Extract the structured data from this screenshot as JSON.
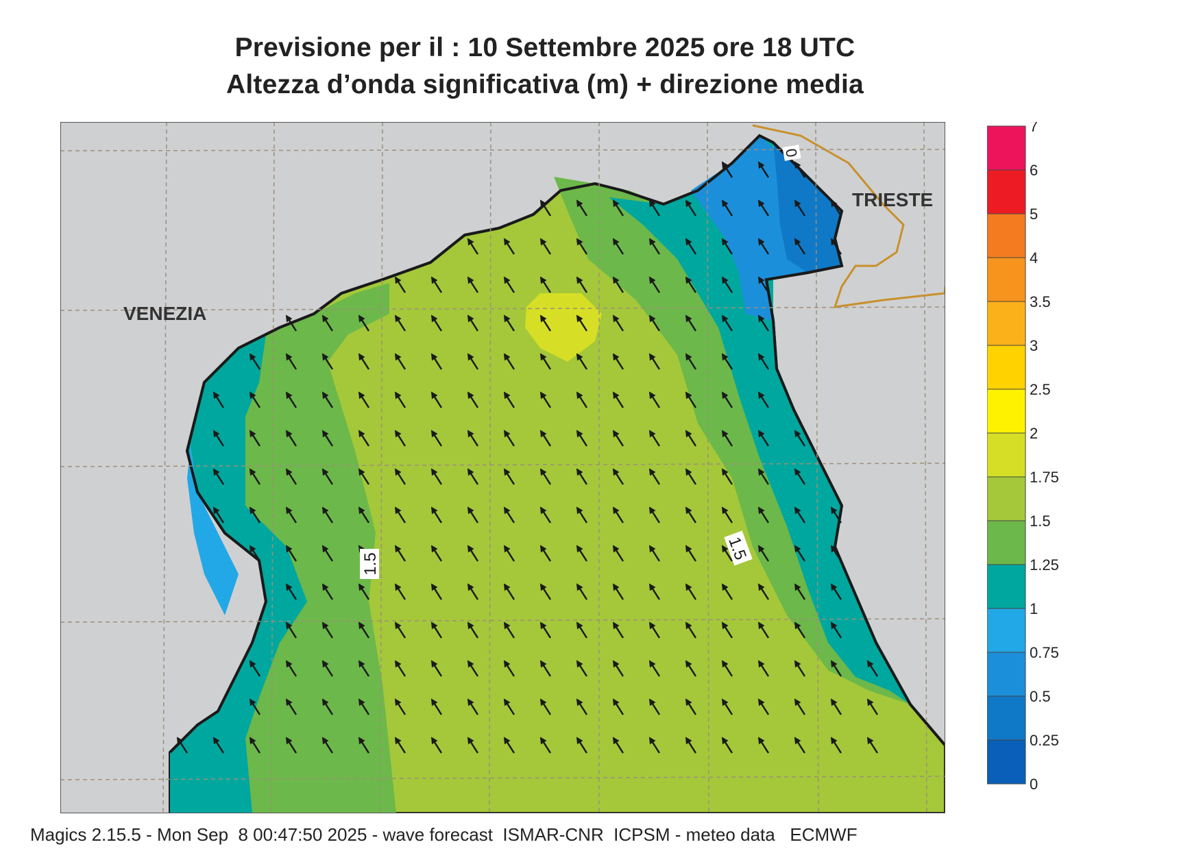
{
  "header": {
    "title_line1": "Previsione per il  :  10 Settembre 2025   ore 18 UTC",
    "title_line2": "Altezza d’onda significativa (m) + direzione media"
  },
  "map": {
    "labels": {
      "venezia": "VENEZIA",
      "trieste": "TRIESTE"
    },
    "contour_labels": [
      "1.5",
      "1.5",
      "0"
    ],
    "arrow_direction": "north-west",
    "colors": {
      "land": "#cfd0d2",
      "coast": "#1a1a1a",
      "grid": "#9c8f7a",
      "border": "#c8902a"
    }
  },
  "legend": {
    "ticks": [
      "0",
      "0.25",
      "0.5",
      "0.75",
      "1",
      "1.25",
      "1.5",
      "1.75",
      "2",
      "2.5",
      "3",
      "3.5",
      "4",
      "5",
      "6",
      "7"
    ],
    "colors": [
      "#0a5fb8",
      "#0f79c8",
      "#1c8fda",
      "#22a8e6",
      "#00a79e",
      "#6cb84a",
      "#a4c83a",
      "#d6df25",
      "#fff200",
      "#ffd200",
      "#fbb11a",
      "#f7941d",
      "#f47b20",
      "#ed1c24",
      "#ed145b"
    ]
  },
  "footer": {
    "text": "Magics 2.15.5 - Mon Sep  8 00:47:50 2025 - wave forecast  ISMAR-CNR  ICPSM - meteo data   ECMWF"
  }
}
